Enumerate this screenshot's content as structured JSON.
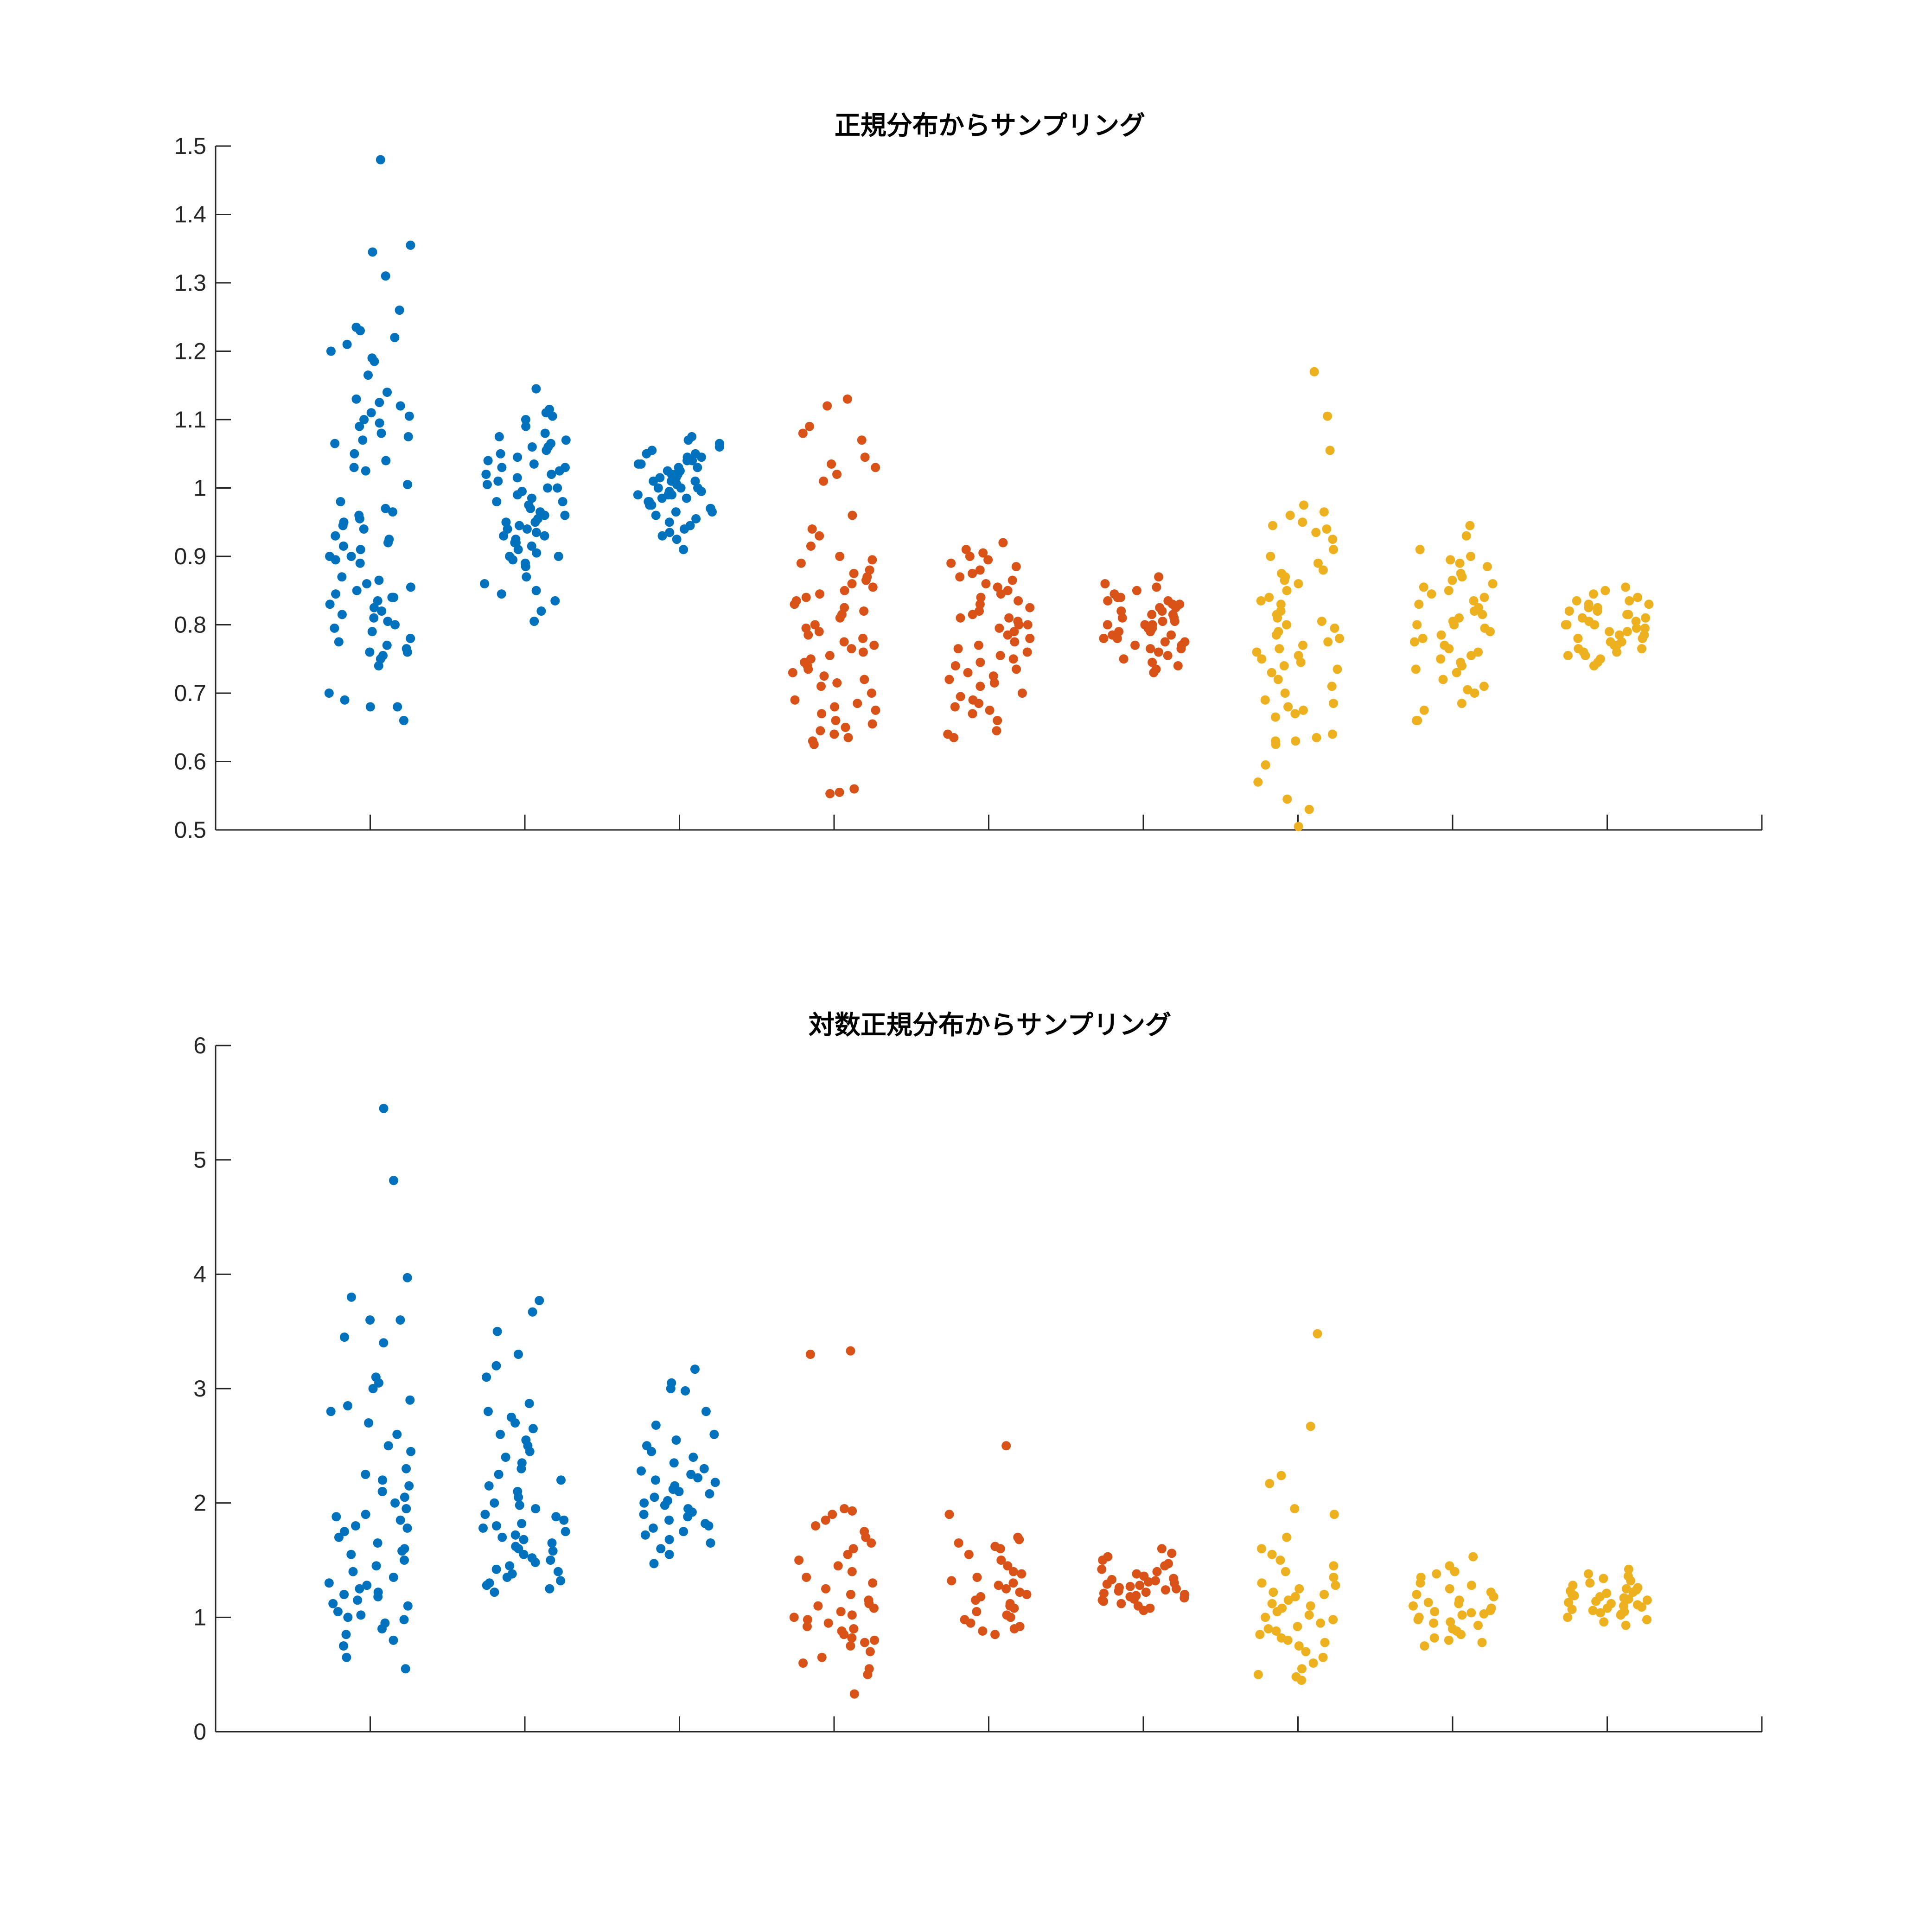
{
  "chart_data": [
    {
      "type": "scatter",
      "title": "正規分布からサンプリング",
      "xlabel": "",
      "ylabel": "",
      "ylim": [
        0.5,
        1.5
      ],
      "xlim": [
        0,
        10
      ],
      "grid": false,
      "yticks": [
        0.5,
        0.6,
        0.7,
        0.8,
        0.9,
        1,
        1.1,
        1.2,
        1.3,
        1.4,
        1.5
      ],
      "ytick_labels": [
        "0.5",
        "0.6",
        "0.7",
        "0.8",
        "0.9",
        "1",
        "1.1",
        "1.2",
        "1.3",
        "1.4",
        "1.5"
      ],
      "xticks": [
        1,
        2,
        3,
        4,
        5,
        6,
        7,
        8,
        9
      ],
      "groups": [
        {
          "x": 1,
          "color": "#0072BD",
          "values": [
            1.48,
            1.355,
            1.345,
            1.31,
            1.26,
            1.235,
            1.23,
            1.22,
            1.21,
            1.2,
            1.19,
            1.185,
            1.165,
            1.14,
            1.13,
            1.125,
            1.12,
            1.11,
            1.105,
            1.1,
            1.095,
            1.09,
            1.08,
            1.075,
            1.07,
            1.065,
            1.05,
            1.04,
            1.03,
            1.025,
            1.005,
            0.98,
            0.97,
            0.965,
            0.96,
            0.955,
            0.95,
            0.945,
            0.94,
            0.93,
            0.925,
            0.92,
            0.915,
            0.91,
            0.9,
            0.9,
            0.895,
            0.89,
            0.87,
            0.865,
            0.86,
            0.855,
            0.85,
            0.845,
            0.84,
            0.84,
            0.835,
            0.83,
            0.825,
            0.82,
            0.815,
            0.81,
            0.805,
            0.8,
            0.795,
            0.79,
            0.78,
            0.775,
            0.77,
            0.765,
            0.76,
            0.76,
            0.755,
            0.75,
            0.74,
            0.7,
            0.69,
            0.68,
            0.68,
            0.66
          ]
        },
        {
          "x": 2,
          "color": "#0072BD",
          "values": [
            1.145,
            1.115,
            1.11,
            1.105,
            1.1,
            1.09,
            1.08,
            1.075,
            1.07,
            1.065,
            1.06,
            1.06,
            1.055,
            1.05,
            1.045,
            1.04,
            1.035,
            1.03,
            1.03,
            1.025,
            1.02,
            1.02,
            1.015,
            1.01,
            1.005,
            1.0,
            1.0,
            0.995,
            0.99,
            0.985,
            0.98,
            0.98,
            0.975,
            0.97,
            0.965,
            0.96,
            0.96,
            0.955,
            0.95,
            0.95,
            0.945,
            0.94,
            0.94,
            0.935,
            0.93,
            0.93,
            0.925,
            0.92,
            0.92,
            0.915,
            0.91,
            0.905,
            0.9,
            0.9,
            0.895,
            0.89,
            0.885,
            0.87,
            0.86,
            0.85,
            0.845,
            0.835,
            0.82,
            0.805
          ]
        },
        {
          "x": 3,
          "color": "#0072BD",
          "values": [
            1.075,
            1.07,
            1.065,
            1.06,
            1.055,
            1.05,
            1.05,
            1.045,
            1.045,
            1.04,
            1.04,
            1.035,
            1.035,
            1.03,
            1.03,
            1.025,
            1.025,
            1.02,
            1.02,
            1.02,
            1.015,
            1.015,
            1.01,
            1.01,
            1.01,
            1.005,
            1.005,
            1.0,
            1.0,
            1.0,
            0.995,
            0.995,
            0.99,
            0.99,
            0.99,
            0.985,
            0.985,
            0.98,
            0.98,
            0.975,
            0.975,
            0.97,
            0.97,
            0.965,
            0.965,
            0.96,
            0.955,
            0.95,
            0.945,
            0.94,
            0.935,
            0.93,
            0.925,
            0.91
          ]
        },
        {
          "x": 4,
          "color": "#D95319",
          "values": [
            1.13,
            1.12,
            1.09,
            1.08,
            1.07,
            1.045,
            1.035,
            1.03,
            1.02,
            1.01,
            0.96,
            0.94,
            0.93,
            0.915,
            0.9,
            0.895,
            0.89,
            0.88,
            0.875,
            0.87,
            0.865,
            0.86,
            0.855,
            0.85,
            0.845,
            0.84,
            0.835,
            0.83,
            0.825,
            0.82,
            0.815,
            0.81,
            0.8,
            0.795,
            0.79,
            0.785,
            0.78,
            0.775,
            0.77,
            0.765,
            0.76,
            0.755,
            0.75,
            0.745,
            0.74,
            0.735,
            0.73,
            0.725,
            0.72,
            0.715,
            0.71,
            0.7,
            0.69,
            0.685,
            0.68,
            0.675,
            0.67,
            0.66,
            0.655,
            0.65,
            0.645,
            0.64,
            0.635,
            0.63,
            0.625,
            0.56,
            0.555,
            0.553
          ]
        },
        {
          "x": 5,
          "color": "#D95319",
          "values": [
            0.92,
            0.91,
            0.905,
            0.9,
            0.895,
            0.89,
            0.885,
            0.88,
            0.875,
            0.87,
            0.865,
            0.86,
            0.855,
            0.85,
            0.845,
            0.84,
            0.835,
            0.83,
            0.825,
            0.82,
            0.815,
            0.81,
            0.81,
            0.805,
            0.8,
            0.8,
            0.795,
            0.79,
            0.785,
            0.78,
            0.775,
            0.77,
            0.765,
            0.76,
            0.755,
            0.75,
            0.745,
            0.74,
            0.735,
            0.73,
            0.725,
            0.72,
            0.715,
            0.71,
            0.7,
            0.695,
            0.69,
            0.685,
            0.68,
            0.675,
            0.67,
            0.66,
            0.645,
            0.64,
            0.635
          ]
        },
        {
          "x": 6,
          "color": "#D95319",
          "values": [
            0.87,
            0.86,
            0.855,
            0.85,
            0.845,
            0.84,
            0.84,
            0.835,
            0.835,
            0.83,
            0.83,
            0.825,
            0.825,
            0.82,
            0.82,
            0.815,
            0.815,
            0.81,
            0.81,
            0.805,
            0.805,
            0.8,
            0.8,
            0.8,
            0.795,
            0.795,
            0.79,
            0.79,
            0.785,
            0.785,
            0.78,
            0.78,
            0.775,
            0.775,
            0.77,
            0.77,
            0.765,
            0.765,
            0.76,
            0.755,
            0.75,
            0.745,
            0.74,
            0.735,
            0.73
          ]
        },
        {
          "x": 7,
          "color": "#EDB120",
          "values": [
            1.17,
            1.105,
            1.055,
            0.975,
            0.965,
            0.96,
            0.95,
            0.945,
            0.94,
            0.935,
            0.925,
            0.91,
            0.9,
            0.89,
            0.88,
            0.875,
            0.87,
            0.865,
            0.86,
            0.85,
            0.84,
            0.835,
            0.83,
            0.82,
            0.815,
            0.81,
            0.805,
            0.8,
            0.795,
            0.79,
            0.785,
            0.78,
            0.775,
            0.77,
            0.765,
            0.76,
            0.755,
            0.75,
            0.745,
            0.74,
            0.735,
            0.73,
            0.72,
            0.71,
            0.7,
            0.69,
            0.685,
            0.68,
            0.675,
            0.67,
            0.665,
            0.64,
            0.635,
            0.63,
            0.63,
            0.625,
            0.595,
            0.57,
            0.545,
            0.53,
            0.505
          ]
        },
        {
          "x": 8,
          "color": "#EDB120",
          "values": [
            0.945,
            0.93,
            0.91,
            0.9,
            0.895,
            0.89,
            0.885,
            0.875,
            0.87,
            0.865,
            0.86,
            0.855,
            0.85,
            0.845,
            0.84,
            0.835,
            0.83,
            0.825,
            0.82,
            0.815,
            0.81,
            0.805,
            0.8,
            0.8,
            0.795,
            0.79,
            0.785,
            0.78,
            0.775,
            0.77,
            0.765,
            0.76,
            0.755,
            0.75,
            0.745,
            0.74,
            0.735,
            0.73,
            0.72,
            0.71,
            0.705,
            0.7,
            0.685,
            0.675,
            0.66,
            0.66
          ]
        },
        {
          "x": 9,
          "color": "#EDB120",
          "values": [
            0.855,
            0.85,
            0.845,
            0.84,
            0.835,
            0.835,
            0.83,
            0.83,
            0.825,
            0.825,
            0.82,
            0.82,
            0.815,
            0.815,
            0.81,
            0.81,
            0.805,
            0.805,
            0.8,
            0.8,
            0.8,
            0.795,
            0.795,
            0.79,
            0.79,
            0.785,
            0.785,
            0.78,
            0.78,
            0.775,
            0.775,
            0.77,
            0.77,
            0.765,
            0.765,
            0.76,
            0.76,
            0.755,
            0.755,
            0.75,
            0.745,
            0.74
          ]
        }
      ]
    },
    {
      "type": "scatter",
      "title": "対数正規分布からサンプリング",
      "xlabel": "",
      "ylabel": "",
      "ylim": [
        0,
        6
      ],
      "xlim": [
        0,
        10
      ],
      "grid": false,
      "yticks": [
        0,
        1,
        2,
        3,
        4,
        5,
        6
      ],
      "ytick_labels": [
        "0",
        "1",
        "2",
        "3",
        "4",
        "5",
        "6"
      ],
      "xticks": [
        1,
        2,
        3,
        4,
        5,
        6,
        7,
        8,
        9
      ],
      "groups": [
        {
          "x": 1,
          "color": "#0072BD",
          "values": [
            5.45,
            4.82,
            3.97,
            3.8,
            3.6,
            3.6,
            3.45,
            3.4,
            3.1,
            3.05,
            3.0,
            2.9,
            2.85,
            2.8,
            2.7,
            2.6,
            2.5,
            2.45,
            2.3,
            2.25,
            2.2,
            2.15,
            2.1,
            2.05,
            2.0,
            1.95,
            1.9,
            1.88,
            1.85,
            1.8,
            1.78,
            1.75,
            1.7,
            1.65,
            1.6,
            1.58,
            1.55,
            1.5,
            1.45,
            1.4,
            1.35,
            1.3,
            1.28,
            1.25,
            1.22,
            1.2,
            1.18,
            1.15,
            1.12,
            1.1,
            1.05,
            1.02,
            1.0,
            0.98,
            0.95,
            0.9,
            0.85,
            0.8,
            0.75,
            0.65,
            0.55
          ]
        },
        {
          "x": 2,
          "color": "#0072BD",
          "values": [
            3.77,
            3.67,
            3.5,
            3.3,
            3.2,
            3.1,
            2.87,
            2.8,
            2.75,
            2.7,
            2.65,
            2.6,
            2.55,
            2.5,
            2.45,
            2.4,
            2.35,
            2.3,
            2.25,
            2.2,
            2.15,
            2.1,
            2.05,
            2.0,
            1.98,
            1.95,
            1.9,
            1.88,
            1.85,
            1.82,
            1.8,
            1.78,
            1.75,
            1.72,
            1.7,
            1.68,
            1.65,
            1.62,
            1.6,
            1.58,
            1.55,
            1.52,
            1.5,
            1.48,
            1.45,
            1.42,
            1.4,
            1.38,
            1.35,
            1.32,
            1.3,
            1.28,
            1.25,
            1.22
          ]
        },
        {
          "x": 3,
          "color": "#0072BD",
          "values": [
            3.17,
            3.05,
            3.0,
            2.98,
            2.8,
            2.68,
            2.6,
            2.55,
            2.5,
            2.45,
            2.4,
            2.35,
            2.3,
            2.28,
            2.25,
            2.22,
            2.2,
            2.18,
            2.15,
            2.12,
            2.1,
            2.08,
            2.05,
            2.02,
            2.0,
            1.98,
            1.95,
            1.92,
            1.9,
            1.88,
            1.85,
            1.82,
            1.8,
            1.78,
            1.75,
            1.72,
            1.68,
            1.65,
            1.6,
            1.55,
            1.47
          ]
        },
        {
          "x": 4,
          "color": "#D95319",
          "values": [
            3.33,
            3.3,
            1.95,
            1.93,
            1.9,
            1.85,
            1.8,
            1.75,
            1.7,
            1.65,
            1.6,
            1.55,
            1.5,
            1.45,
            1.4,
            1.35,
            1.3,
            1.25,
            1.2,
            1.15,
            1.12,
            1.1,
            1.08,
            1.05,
            1.02,
            1.0,
            0.98,
            0.95,
            0.92,
            0.9,
            0.88,
            0.85,
            0.82,
            0.8,
            0.78,
            0.75,
            0.7,
            0.65,
            0.6,
            0.55,
            0.5,
            0.33
          ]
        },
        {
          "x": 5,
          "color": "#D95319",
          "values": [
            2.5,
            1.9,
            1.7,
            1.68,
            1.65,
            1.62,
            1.6,
            1.55,
            1.5,
            1.45,
            1.4,
            1.38,
            1.35,
            1.32,
            1.3,
            1.28,
            1.25,
            1.22,
            1.2,
            1.18,
            1.15,
            1.12,
            1.1,
            1.08,
            1.05,
            1.02,
            1.0,
            0.98,
            0.95,
            0.92,
            0.9,
            0.88,
            0.85
          ]
        },
        {
          "x": 6,
          "color": "#D95319",
          "values": [
            1.6,
            1.56,
            1.53,
            1.5,
            1.47,
            1.45,
            1.42,
            1.4,
            1.38,
            1.36,
            1.34,
            1.33,
            1.32,
            1.31,
            1.3,
            1.29,
            1.28,
            1.27,
            1.26,
            1.25,
            1.24,
            1.23,
            1.22,
            1.21,
            1.2,
            1.19,
            1.18,
            1.17,
            1.16,
            1.15,
            1.14,
            1.12,
            1.1,
            1.08,
            1.06
          ]
        },
        {
          "x": 7,
          "color": "#EDB120",
          "values": [
            3.48,
            2.67,
            2.24,
            2.17,
            1.95,
            1.9,
            1.7,
            1.6,
            1.55,
            1.5,
            1.45,
            1.4,
            1.35,
            1.3,
            1.28,
            1.25,
            1.22,
            1.2,
            1.18,
            1.15,
            1.12,
            1.1,
            1.08,
            1.05,
            1.02,
            1.0,
            0.98,
            0.95,
            0.92,
            0.9,
            0.88,
            0.85,
            0.82,
            0.8,
            0.78,
            0.75,
            0.7,
            0.65,
            0.6,
            0.55,
            0.5,
            0.48,
            0.45
          ]
        },
        {
          "x": 8,
          "color": "#EDB120",
          "values": [
            1.53,
            1.45,
            1.4,
            1.38,
            1.35,
            1.3,
            1.28,
            1.25,
            1.22,
            1.2,
            1.18,
            1.15,
            1.13,
            1.12,
            1.1,
            1.08,
            1.06,
            1.05,
            1.04,
            1.03,
            1.02,
            1.0,
            0.98,
            0.96,
            0.95,
            0.93,
            0.9,
            0.88,
            0.85,
            0.82,
            0.8,
            0.78,
            0.75
          ]
        },
        {
          "x": 9,
          "color": "#EDB120",
          "values": [
            1.42,
            1.38,
            1.36,
            1.34,
            1.32,
            1.3,
            1.28,
            1.26,
            1.25,
            1.24,
            1.23,
            1.22,
            1.21,
            1.2,
            1.19,
            1.18,
            1.17,
            1.16,
            1.15,
            1.14,
            1.13,
            1.12,
            1.11,
            1.1,
            1.09,
            1.08,
            1.07,
            1.06,
            1.05,
            1.04,
            1.03,
            1.02,
            1.0,
            0.98,
            0.96,
            0.93
          ]
        }
      ]
    }
  ]
}
